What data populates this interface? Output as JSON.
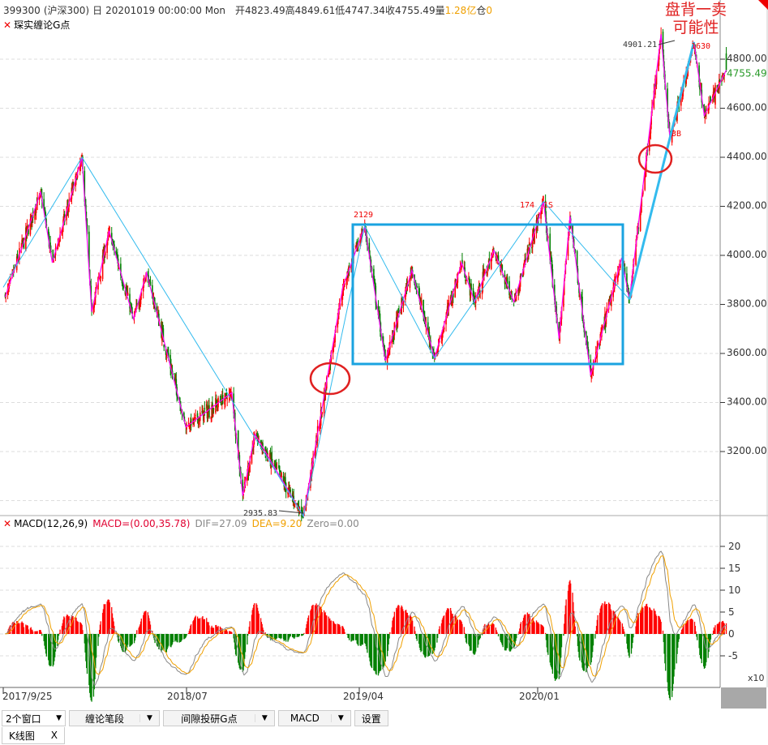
{
  "header": {
    "code": "399300",
    "name": "(沪深300)",
    "period": "日",
    "datetime": "20201019 00:00:00 Mon",
    "open_label": "开",
    "open": "4823.49",
    "high_label": "高",
    "high": "4849.61",
    "low_label": "低",
    "low": "4747.34",
    "close_label": "收",
    "close": "4755.49",
    "vol_label": "量",
    "vol": "1.28亿",
    "pos_label": "仓",
    "pos": "0"
  },
  "indicator_main": {
    "close_icon": "close-icon",
    "name": "琛实缠论G点"
  },
  "annotation": {
    "line1": "盘背一卖",
    "line2": "可能性"
  },
  "colors": {
    "up": "#ff0000",
    "down": "#008000",
    "pen": "#ff00ff",
    "segment": "#33bbee",
    "dif": "#888888",
    "dea": "#f0a000"
  },
  "chart_data": {
    "type": "candlestick",
    "price_axis": {
      "ticks": [
        "4800.00",
        "4600.00",
        "4400.00",
        "4200.00",
        "4000.00",
        "3800.00",
        "3600.00",
        "3400.00",
        "3200.00"
      ],
      "last": "4755.49"
    },
    "pivots": [
      [
        "2017-09-28",
        3830
      ],
      [
        "2017-11-22",
        4260
      ],
      [
        "2017-12-10",
        3970
      ],
      [
        "2018-01-25",
        4400
      ],
      [
        "2018-02-09",
        3770
      ],
      [
        "2018-03-08",
        4100
      ],
      [
        "2018-04-15",
        3740
      ],
      [
        "2018-05-05",
        3930
      ],
      [
        "2018-07-05",
        3300
      ],
      [
        "2018-09-14",
        3440
      ],
      [
        "2018-10-01",
        3020
      ],
      [
        "2018-10-20",
        3270
      ],
      [
        "2019-01-03",
        2935.83
      ],
      [
        "2019-03-05",
        3870
      ],
      [
        "2019-04-08",
        4120
      ],
      [
        "2019-05-10",
        3570
      ],
      [
        "2019-06-20",
        3940
      ],
      [
        "2019-07-25",
        3580
      ],
      [
        "2019-09-05",
        3970
      ],
      [
        "2019-09-25",
        3810
      ],
      [
        "2019-10-25",
        4020
      ],
      [
        "2019-11-25",
        3810
      ],
      [
        "2020-01-10",
        4220
      ],
      [
        "2020-02-03",
        3660
      ],
      [
        "2020-02-20",
        4160
      ],
      [
        "2020-03-23",
        3510
      ],
      [
        "2020-05-10",
        3990
      ],
      [
        "2020-05-22",
        3820
      ],
      [
        "2020-07-10",
        4901.21
      ],
      [
        "2020-07-24",
        4470
      ],
      [
        "2020-08-30",
        4870
      ],
      [
        "2020-09-15",
        4570
      ],
      [
        "2020-10-19",
        4755.49
      ]
    ],
    "labels": {
      "low": "2935.83",
      "high": "4901.21",
      "p2129": "2129",
      "p1748a": "174",
      "p1748b": "1S",
      "p3b": "3B",
      "p1630": "1630"
    },
    "x_ticks": [
      "2017/9/25",
      "2018/07",
      "2019/04",
      "2020/01"
    ]
  },
  "macd": {
    "name": "MACD(12,26,9)",
    "macd": "MACD=(0.00,35.78)",
    "dif": "DIF=27.09",
    "dea": "DEA=9.20",
    "zero": "Zero=0.00",
    "ticks": [
      "20",
      "15",
      "10",
      "5",
      "0",
      "-5"
    ],
    "unit": "x10"
  },
  "toolbar": {
    "windows": "2个窗口",
    "pen": "缠论笔段",
    "gpoint": "间隙投研G点",
    "macd": "MACD",
    "settings": "设置",
    "dropdown": "▼"
  },
  "tabs": [
    {
      "label": "K线图",
      "close": "X"
    }
  ]
}
